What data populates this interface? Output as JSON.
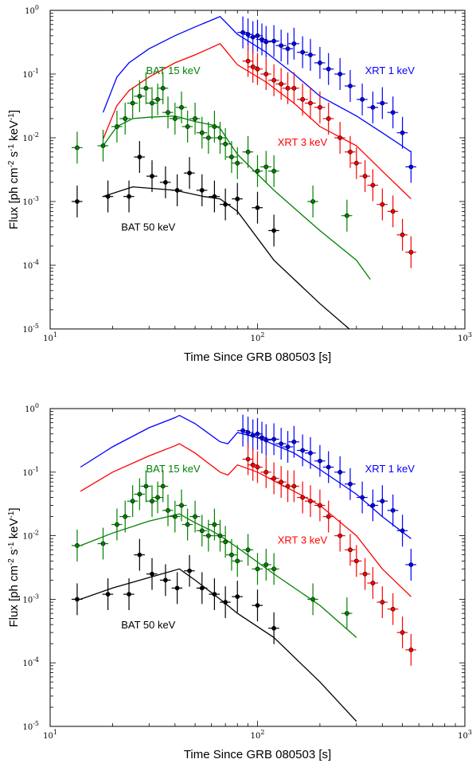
{
  "figure": {
    "colors": {
      "blue": "#0000ff",
      "red": "#ff0000",
      "green": "#008000",
      "black": "#000000"
    }
  },
  "chart_data": [
    {
      "type": "scatter",
      "panel": "top",
      "xlabel": "Time Since GRB 080503 [s]",
      "ylabel": "Flux [ph cm^-2 s^-1 keV^-1]",
      "xscale": "log",
      "yscale": "log",
      "xlim": [
        10,
        1000
      ],
      "ylim": [
        1e-05,
        1
      ],
      "x_ticks": [
        "10^1",
        "10^2",
        "10^3"
      ],
      "y_ticks": [
        "10^-5",
        "10^-4",
        "10^-3",
        "10^-2",
        "10^-1",
        "10^0"
      ],
      "annotations": [
        {
          "text": "XRT 1 keV",
          "color": "blue",
          "x": 330,
          "y": 0.1
        },
        {
          "text": "XRT 3 keV",
          "color": "red",
          "x": 125,
          "y": 0.0075
        },
        {
          "text": "BAT 15 keV",
          "color": "green",
          "x": 29,
          "y": 0.1
        },
        {
          "text": "BAT 50 keV",
          "color": "black",
          "x": 22,
          "y": 0.00035
        }
      ],
      "series": [
        {
          "name": "XRT 1 keV",
          "kind": "model",
          "color": "blue",
          "x": [
            18,
            20,
            21,
            24,
            30,
            40,
            50,
            66,
            80,
            110,
            150,
            200,
            300,
            400,
            550
          ],
          "y": [
            0.025,
            0.06,
            0.09,
            0.15,
            0.25,
            0.4,
            0.55,
            0.8,
            0.42,
            0.22,
            0.1,
            0.045,
            0.022,
            0.012,
            0.006
          ]
        },
        {
          "name": "XRT 3 keV",
          "kind": "model",
          "color": "red",
          "x": [
            18,
            20,
            21,
            24,
            30,
            40,
            50,
            66,
            80,
            110,
            150,
            200,
            300,
            400,
            550
          ],
          "y": [
            0.0095,
            0.022,
            0.032,
            0.055,
            0.09,
            0.15,
            0.2,
            0.3,
            0.14,
            0.075,
            0.035,
            0.015,
            0.0075,
            0.003,
            0.0011
          ]
        },
        {
          "name": "BAT 15 keV",
          "kind": "model",
          "color": "green",
          "x": [
            18,
            21,
            25,
            30,
            40,
            50,
            60,
            66,
            80,
            120,
            200,
            300,
            350
          ],
          "y": [
            0.0075,
            0.015,
            0.02,
            0.021,
            0.022,
            0.018,
            0.016,
            0.014,
            0.0055,
            0.0015,
            0.00035,
            0.00012,
            6e-05
          ]
        },
        {
          "name": "BAT 50 keV",
          "kind": "model",
          "color": "black",
          "x": [
            18,
            25,
            40,
            55,
            66,
            80,
            120,
            200,
            300
          ],
          "y": [
            0.0012,
            0.0017,
            0.0015,
            0.0012,
            0.0011,
            0.0007,
            0.00012,
            2.5e-05,
            8e-06
          ]
        },
        {
          "name": "XRT 1 keV",
          "kind": "data",
          "color": "blue",
          "x": [
            85,
            90,
            95,
            100,
            105,
            110,
            120,
            130,
            140,
            150,
            165,
            180,
            200,
            220,
            250,
            280,
            320,
            360,
            400,
            450,
            500,
            550
          ],
          "y": [
            0.45,
            0.42,
            0.38,
            0.4,
            0.35,
            0.32,
            0.33,
            0.28,
            0.25,
            0.3,
            0.22,
            0.2,
            0.15,
            0.12,
            0.1,
            0.065,
            0.04,
            0.03,
            0.035,
            0.025,
            0.012,
            0.0035
          ]
        },
        {
          "name": "XRT 3 keV",
          "kind": "data",
          "color": "red",
          "x": [
            90,
            95,
            100,
            110,
            120,
            130,
            140,
            150,
            165,
            180,
            200,
            220,
            250,
            280,
            300,
            330,
            360,
            400,
            450,
            500,
            550
          ],
          "y": [
            0.16,
            0.13,
            0.12,
            0.1,
            0.08,
            0.07,
            0.06,
            0.06,
            0.04,
            0.035,
            0.03,
            0.02,
            0.01,
            0.006,
            0.004,
            0.0025,
            0.0018,
            0.0009,
            0.0007,
            0.0003,
            0.00016
          ]
        },
        {
          "name": "BAT 15 keV",
          "kind": "data",
          "color": "green",
          "x": [
            13.5,
            18,
            21,
            23,
            25,
            27,
            29,
            31,
            33,
            35,
            37,
            40,
            43,
            46,
            50,
            54,
            58,
            62,
            66,
            70,
            75,
            80,
            90,
            100,
            110,
            120,
            185,
            270
          ],
          "y": [
            0.007,
            0.0075,
            0.015,
            0.02,
            0.035,
            0.045,
            0.06,
            0.035,
            0.04,
            0.06,
            0.025,
            0.02,
            0.03,
            0.015,
            0.02,
            0.012,
            0.01,
            0.015,
            0.01,
            0.008,
            0.005,
            0.004,
            0.006,
            0.003,
            0.0035,
            0.003,
            0.001,
            0.0006
          ]
        },
        {
          "name": "BAT 50 keV",
          "kind": "data",
          "color": "black",
          "x": [
            13.5,
            19,
            24,
            27,
            31,
            36,
            41,
            47,
            54,
            62,
            70,
            80,
            100,
            120
          ],
          "y": [
            0.001,
            0.0012,
            0.0012,
            0.005,
            0.0025,
            0.002,
            0.0015,
            0.0028,
            0.0015,
            0.0012,
            0.0009,
            0.0011,
            0.0008,
            0.00035
          ]
        }
      ]
    },
    {
      "type": "scatter",
      "panel": "bottom",
      "xlabel": "Time Since GRB 080503 [s]",
      "ylabel": "Flux [ph cm^-2 s^-1 keV^-1]",
      "xscale": "log",
      "yscale": "log",
      "xlim": [
        10,
        1000
      ],
      "ylim": [
        1e-05,
        1
      ],
      "x_ticks": [
        "10^1",
        "10^2",
        "10^3"
      ],
      "y_ticks": [
        "10^-5",
        "10^-4",
        "10^-3",
        "10^-2",
        "10^-1",
        "10^0"
      ],
      "annotations": [
        {
          "text": "XRT 1 keV",
          "color": "blue",
          "x": 330,
          "y": 0.1
        },
        {
          "text": "XRT 3 keV",
          "color": "red",
          "x": 125,
          "y": 0.0075
        },
        {
          "text": "BAT 15 keV",
          "color": "green",
          "x": 29,
          "y": 0.1
        },
        {
          "text": "BAT 50 keV",
          "color": "black",
          "x": 22,
          "y": 0.00035
        }
      ],
      "series": [
        {
          "name": "XRT 1 keV",
          "kind": "model",
          "color": "blue",
          "x": [
            14,
            20,
            30,
            40,
            42,
            50,
            66,
            72,
            80,
            100,
            150,
            200,
            300,
            400,
            550
          ],
          "y": [
            0.12,
            0.25,
            0.5,
            0.72,
            0.78,
            0.58,
            0.3,
            0.28,
            0.42,
            0.35,
            0.2,
            0.11,
            0.045,
            0.02,
            0.009
          ]
        },
        {
          "name": "XRT 3 keV",
          "kind": "model",
          "color": "red",
          "x": [
            14,
            20,
            30,
            40,
            42,
            50,
            66,
            72,
            80,
            100,
            150,
            200,
            300,
            400,
            550
          ],
          "y": [
            0.05,
            0.1,
            0.18,
            0.26,
            0.28,
            0.2,
            0.1,
            0.09,
            0.13,
            0.1,
            0.05,
            0.03,
            0.01,
            0.003,
            0.0011
          ]
        },
        {
          "name": "BAT 15 keV",
          "kind": "model",
          "color": "green",
          "x": [
            14,
            20,
            30,
            42,
            50,
            60,
            66,
            80,
            120,
            200,
            300
          ],
          "y": [
            0.007,
            0.011,
            0.017,
            0.022,
            0.016,
            0.012,
            0.01,
            0.0065,
            0.0025,
            0.0008,
            0.00025
          ]
        },
        {
          "name": "BAT 50 keV",
          "kind": "model",
          "color": "black",
          "x": [
            14,
            20,
            30,
            42,
            50,
            66,
            80,
            120,
            200,
            300
          ],
          "y": [
            0.001,
            0.0015,
            0.0022,
            0.003,
            0.002,
            0.001,
            0.0006,
            0.00025,
            5e-05,
            1.2e-05
          ]
        },
        {
          "name": "XRT 1 keV",
          "kind": "data",
          "color": "blue",
          "x": [
            85,
            90,
            95,
            100,
            105,
            110,
            120,
            130,
            140,
            150,
            165,
            180,
            200,
            220,
            250,
            280,
            320,
            360,
            400,
            450,
            500,
            550
          ],
          "y": [
            0.45,
            0.42,
            0.38,
            0.4,
            0.35,
            0.32,
            0.33,
            0.28,
            0.25,
            0.3,
            0.22,
            0.2,
            0.15,
            0.12,
            0.1,
            0.065,
            0.04,
            0.03,
            0.035,
            0.025,
            0.012,
            0.0035
          ]
        },
        {
          "name": "XRT 3 keV",
          "kind": "data",
          "color": "red",
          "x": [
            90,
            95,
            100,
            110,
            120,
            130,
            140,
            150,
            165,
            180,
            200,
            220,
            250,
            280,
            300,
            330,
            360,
            400,
            450,
            500,
            550
          ],
          "y": [
            0.16,
            0.13,
            0.12,
            0.1,
            0.08,
            0.07,
            0.06,
            0.06,
            0.04,
            0.035,
            0.03,
            0.02,
            0.01,
            0.006,
            0.004,
            0.0025,
            0.0018,
            0.0009,
            0.0007,
            0.0003,
            0.00016
          ]
        },
        {
          "name": "BAT 15 keV",
          "kind": "data",
          "color": "green",
          "x": [
            13.5,
            18,
            21,
            23,
            25,
            27,
            29,
            31,
            33,
            35,
            37,
            40,
            43,
            46,
            50,
            54,
            58,
            62,
            66,
            70,
            75,
            80,
            90,
            100,
            110,
            120,
            185,
            270
          ],
          "y": [
            0.007,
            0.0075,
            0.015,
            0.02,
            0.035,
            0.045,
            0.06,
            0.035,
            0.04,
            0.06,
            0.025,
            0.02,
            0.03,
            0.015,
            0.02,
            0.012,
            0.01,
            0.015,
            0.01,
            0.008,
            0.005,
            0.004,
            0.006,
            0.003,
            0.0035,
            0.003,
            0.001,
            0.0006
          ]
        },
        {
          "name": "BAT 50 keV",
          "kind": "data",
          "color": "black",
          "x": [
            13.5,
            19,
            24,
            27,
            31,
            36,
            41,
            47,
            54,
            62,
            70,
            80,
            100,
            120
          ],
          "y": [
            0.001,
            0.0012,
            0.0012,
            0.005,
            0.0025,
            0.002,
            0.0015,
            0.0028,
            0.0015,
            0.0012,
            0.0009,
            0.0011,
            0.0008,
            0.00035
          ]
        }
      ]
    }
  ]
}
